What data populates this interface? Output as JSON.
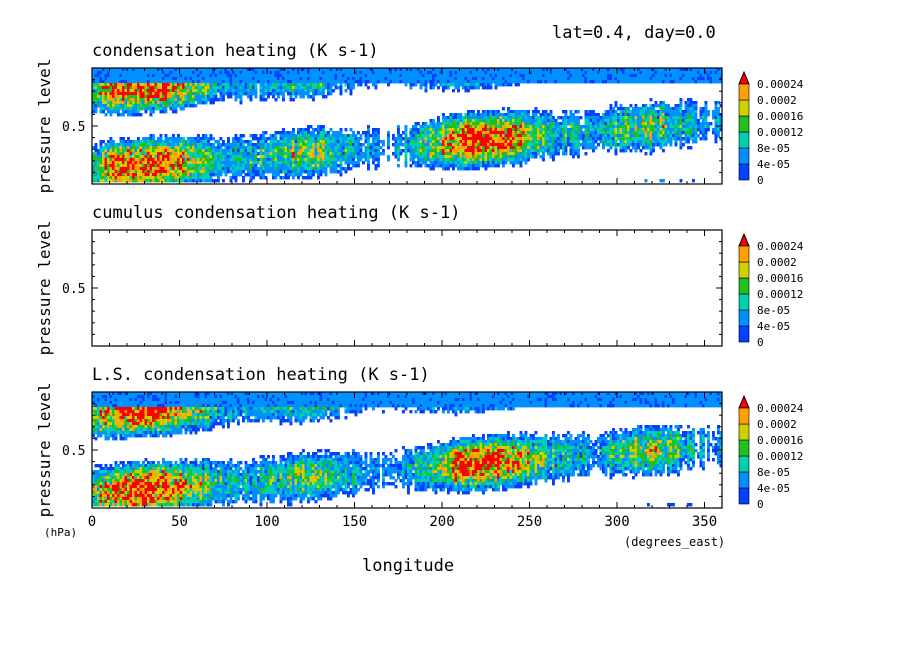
{
  "header": {
    "info": "lat=0.4, day=0.0"
  },
  "x_axis": {
    "label": "longitude",
    "units": "(degrees_east)",
    "ticks": [
      "0",
      "50",
      "100",
      "150",
      "200",
      "250",
      "300",
      "350"
    ]
  },
  "y_axis": {
    "units": "(hPa)"
  },
  "colors": [
    "#0040ff",
    "#0090ff",
    "#00d0b0",
    "#20c020",
    "#d0d000",
    "#ffa000",
    "#ff0000"
  ],
  "chart_data": [
    {
      "type": "heatmap",
      "title": "condensation heating (K s-1)",
      "xlabel": "longitude",
      "ylabel": "pressure level",
      "xlim": [
        0,
        360
      ],
      "yticks": [
        "0.5"
      ],
      "colorbar": {
        "levels": [
          "0",
          "4e-05",
          "8e-05",
          "0.00012",
          "0.00016",
          "0.0002",
          "0.00024"
        ]
      },
      "pattern": "dense"
    },
    {
      "type": "heatmap",
      "title": "cumulus condensation heating (K s-1)",
      "xlabel": "longitude",
      "ylabel": "pressure level",
      "xlim": [
        0,
        360
      ],
      "yticks": [
        "0.5"
      ],
      "colorbar": {
        "levels": [
          "0",
          "4e-05",
          "8e-05",
          "0.00012",
          "0.00016",
          "0.0002",
          "0.00024"
        ]
      },
      "pattern": "empty"
    },
    {
      "type": "heatmap",
      "title": "L.S. condensation heating (K s-1)",
      "xlabel": "longitude",
      "ylabel": "pressure level",
      "xlim": [
        0,
        360
      ],
      "yticks": [
        "0.5"
      ],
      "colorbar": {
        "levels": [
          "0",
          "4e-05",
          "8e-05",
          "0.00012",
          "0.00016",
          "0.0002",
          "0.00024"
        ]
      },
      "pattern": "dense"
    }
  ]
}
